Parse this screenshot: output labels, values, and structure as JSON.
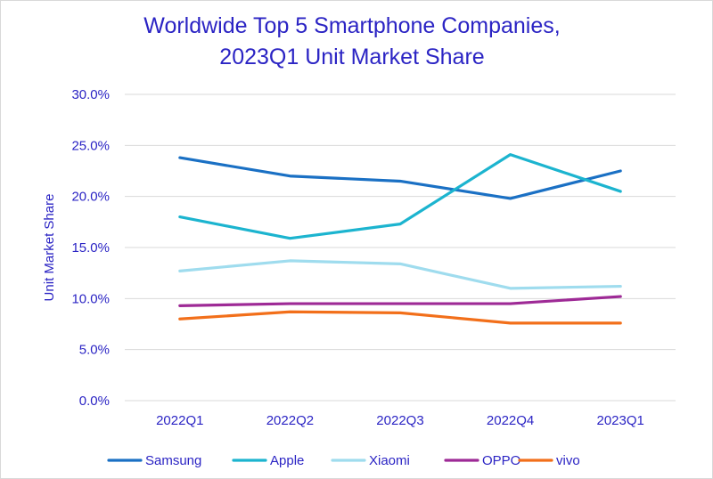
{
  "chart_data": {
    "type": "line",
    "title": "Worldwide Top 5 Smartphone Companies,",
    "subtitle": "2023Q1 Unit Market Share",
    "xlabel": "",
    "ylabel": "Unit Market Share",
    "categories": [
      "2022Q1",
      "2022Q2",
      "2022Q3",
      "2022Q4",
      "2023Q1"
    ],
    "ylim": [
      0,
      30
    ],
    "yticks": [
      0,
      5,
      10,
      15,
      20,
      25,
      30
    ],
    "ytick_labels": [
      "0.0%",
      "5.0%",
      "10.0%",
      "15.0%",
      "20.0%",
      "25.0%",
      "30.0%"
    ],
    "grid": true,
    "legend_position": "bottom",
    "series": [
      {
        "name": "Samsung",
        "color": "#1a70c4",
        "values": [
          23.8,
          22.0,
          21.5,
          19.8,
          22.5
        ]
      },
      {
        "name": "Apple",
        "color": "#1cb4cf",
        "values": [
          18.0,
          15.9,
          17.3,
          24.1,
          20.5
        ]
      },
      {
        "name": "Xiaomi",
        "color": "#9fdcee",
        "values": [
          12.7,
          13.7,
          13.4,
          11.0,
          11.2
        ]
      },
      {
        "name": "OPPO",
        "color": "#9e2a96",
        "values": [
          9.3,
          9.5,
          9.5,
          9.5,
          10.2
        ]
      },
      {
        "name": "vivo",
        "color": "#f26f1a",
        "values": [
          8.0,
          8.7,
          8.6,
          7.6,
          7.6
        ]
      }
    ]
  }
}
